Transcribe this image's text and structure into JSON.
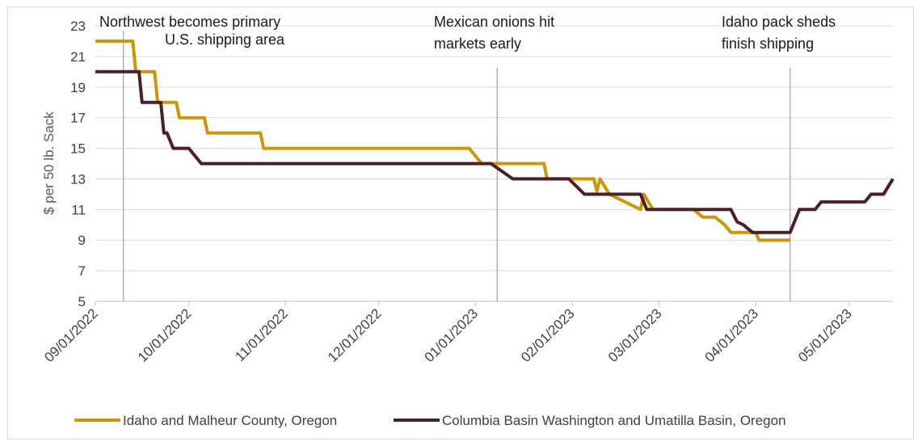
{
  "chart_data": {
    "type": "line",
    "ylabel": "$ per 50 lb. Sack",
    "xlabel": "",
    "ylim": [
      5,
      23
    ],
    "yticks": [
      5,
      7,
      9,
      11,
      13,
      15,
      17,
      19,
      21,
      23
    ],
    "xrange": [
      "2022-09-01",
      "2023-05-15"
    ],
    "xticks": [
      "2022-09-01",
      "2022-10-01",
      "2022-11-01",
      "2022-12-01",
      "2023-01-01",
      "2023-02-01",
      "2023-03-01",
      "2023-04-01",
      "2023-05-01"
    ],
    "xtick_labels": [
      "09/01/2022",
      "10/01/2022",
      "11/01/2022",
      "12/01/2022",
      "01/01/2023",
      "02/01/2023",
      "03/01/2023",
      "04/01/2023",
      "05/01/2023"
    ],
    "grid": "horizontal",
    "legend_position": "bottom",
    "colors": {
      "series1": "#c9960c",
      "series2": "#4a2026",
      "annotation_line": "#a6a6a6",
      "grid": "#d9d9d9"
    },
    "annotations": [
      {
        "date": "2022-09-10",
        "lines": [
          "Northwest becomes primary",
          "U.S. shipping area"
        ]
      },
      {
        "date": "2023-01-08",
        "lines": [
          "Mexican onions hit",
          "markets early"
        ]
      },
      {
        "date": "2023-04-12",
        "lines": [
          "Idaho pack sheds",
          "finish shipping"
        ]
      }
    ],
    "series": [
      {
        "name": "Idaho and Malheur County, Oregon",
        "color": "#c9960c",
        "points": [
          [
            "2022-09-01",
            22
          ],
          [
            "2022-09-13",
            22
          ],
          [
            "2022-09-14",
            20
          ],
          [
            "2022-09-20",
            20
          ],
          [
            "2022-09-21",
            18
          ],
          [
            "2022-09-27",
            18
          ],
          [
            "2022-09-28",
            17
          ],
          [
            "2022-10-06",
            17
          ],
          [
            "2022-10-07",
            16
          ],
          [
            "2022-10-24",
            16
          ],
          [
            "2022-10-25",
            15
          ],
          [
            "2022-12-30",
            15
          ],
          [
            "2023-01-03",
            14
          ],
          [
            "2023-01-23",
            14
          ],
          [
            "2023-01-24",
            13
          ],
          [
            "2023-02-08",
            13
          ],
          [
            "2023-02-09",
            12.2
          ],
          [
            "2023-02-10",
            13
          ],
          [
            "2023-02-13",
            12
          ],
          [
            "2023-02-21",
            11.2
          ],
          [
            "2023-02-23",
            11
          ],
          [
            "2023-02-24",
            12
          ],
          [
            "2023-02-27",
            11
          ],
          [
            "2023-03-12",
            11
          ],
          [
            "2023-03-15",
            10.5
          ],
          [
            "2023-03-19",
            10.5
          ],
          [
            "2023-03-22",
            10
          ],
          [
            "2023-03-24",
            9.5
          ],
          [
            "2023-04-01",
            9.5
          ],
          [
            "2023-04-02",
            9
          ],
          [
            "2023-04-12",
            9
          ]
        ]
      },
      {
        "name": "Columbia Basin Washington and Umatilla Basin, Oregon",
        "color": "#4a2026",
        "points": [
          [
            "2022-09-01",
            20
          ],
          [
            "2022-09-15",
            20
          ],
          [
            "2022-09-16",
            18
          ],
          [
            "2022-09-22",
            18
          ],
          [
            "2022-09-23",
            16
          ],
          [
            "2022-09-24",
            16
          ],
          [
            "2022-09-26",
            15
          ],
          [
            "2022-10-01",
            15
          ],
          [
            "2022-10-05",
            14
          ],
          [
            "2023-01-06",
            14
          ],
          [
            "2023-01-13",
            13
          ],
          [
            "2023-01-31",
            13
          ],
          [
            "2023-02-05",
            12
          ],
          [
            "2023-02-23",
            12
          ],
          [
            "2023-02-25",
            11
          ],
          [
            "2023-03-24",
            11
          ],
          [
            "2023-03-26",
            10.2
          ],
          [
            "2023-03-28",
            10
          ],
          [
            "2023-03-31",
            9.5
          ],
          [
            "2023-04-12",
            9.5
          ],
          [
            "2023-04-15",
            11
          ],
          [
            "2023-04-20",
            11
          ],
          [
            "2023-04-22",
            11.5
          ],
          [
            "2023-05-06",
            11.5
          ],
          [
            "2023-05-08",
            12
          ],
          [
            "2023-05-12",
            12
          ],
          [
            "2023-05-15",
            13
          ]
        ]
      }
    ]
  }
}
